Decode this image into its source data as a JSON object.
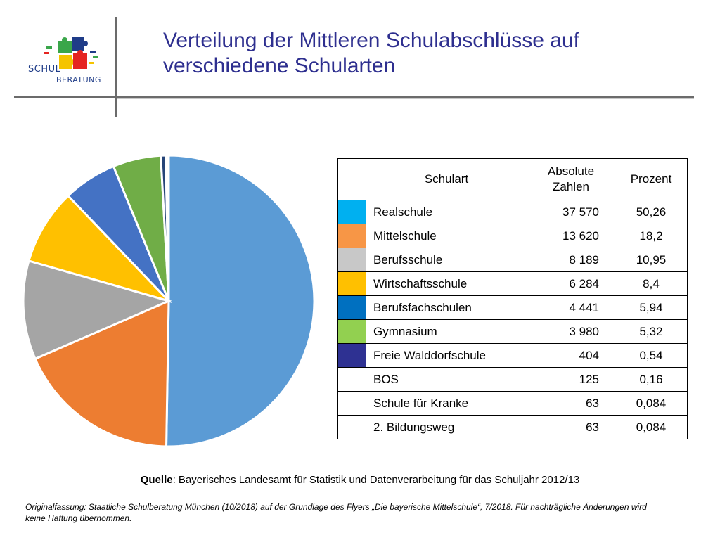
{
  "logo": {
    "line1": "SCHUL",
    "line2": "BERATUNG"
  },
  "title": "Verteilung der Mittleren Schulabschlüsse auf verschiedene Schularten",
  "table": {
    "headers": [
      "Schulart",
      "Absolute Zahlen",
      "Prozent"
    ],
    "rows": [
      {
        "color": "#00b0f0",
        "name": "Realschule",
        "abs": "37 570",
        "pct": "50,26"
      },
      {
        "color": "#f79646",
        "name": "Mittelschule",
        "abs": "13 620",
        "pct": "18,2"
      },
      {
        "color": "#c8c8c8",
        "name": "Berufsschule",
        "abs": "8 189",
        "pct": "10,95"
      },
      {
        "color": "#ffc000",
        "name": "Wirtschaftsschule",
        "abs": "6 284",
        "pct": "8,4"
      },
      {
        "color": "#0070c0",
        "name": "Berufsfachschulen",
        "abs": "4 441",
        "pct": "5,94"
      },
      {
        "color": "#92d050",
        "name": "Gymnasium",
        "abs": "3 980",
        "pct": "5,32"
      },
      {
        "color": "#2e3192",
        "name": "Freie Walddorfschule",
        "abs": "404",
        "pct": "0,54"
      },
      {
        "color": "",
        "name": "BOS",
        "abs": "125",
        "pct": "0,16"
      },
      {
        "color": "",
        "name": "Schule für Kranke",
        "abs": "63",
        "pct": "0,084"
      },
      {
        "color": "",
        "name": "2. Bildungsweg",
        "abs": "63",
        "pct": "0,084"
      }
    ]
  },
  "source": {
    "label": "Quelle",
    "text": ": Bayerisches Landesamt für Statistik und Datenverarbeitung für das Schuljahr 2012/13"
  },
  "footnote": "Originalfassung: Staatliche Schulberatung München (10/2018) auf der Grundlage des Flyers „Die bayerische Mittelschule“, 7/2018. Für nachträgliche Änderungen wird keine Haftung übernommen.",
  "chart_data": {
    "type": "pie",
    "categories": [
      "Realschule",
      "Mittelschule",
      "Berufsschule",
      "Wirtschaftsschule",
      "Berufsfachschulen",
      "Gymnasium",
      "Freie Walddorfschule",
      "BOS",
      "Schule für Kranke",
      "2. Bildungsweg"
    ],
    "values": [
      37570,
      13620,
      8189,
      6284,
      4441,
      3980,
      404,
      125,
      63,
      63
    ],
    "colors": [
      "#5b9bd5",
      "#ed7d31",
      "#a5a5a5",
      "#ffc000",
      "#4472c4",
      "#70ad47",
      "#264478",
      "#9e480e",
      "#636363",
      "#997300"
    ],
    "title": "",
    "legend": "none"
  }
}
